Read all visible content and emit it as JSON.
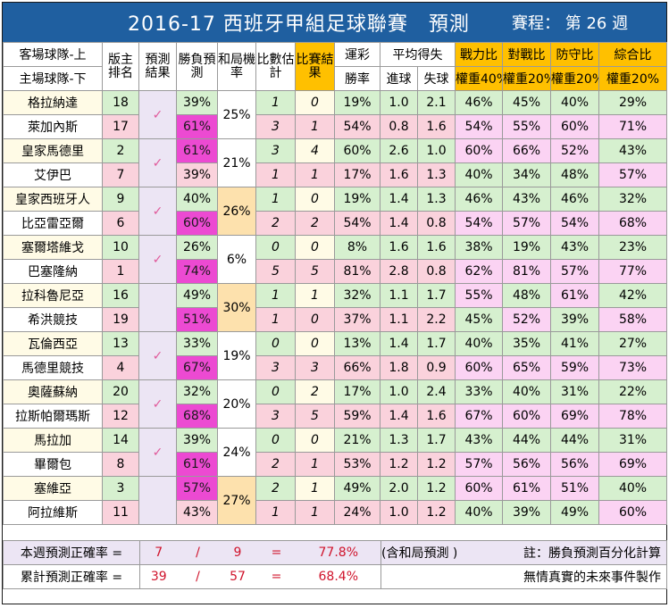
{
  "title": "2016-17 西班牙甲組足球聯賽　預測",
  "schedule": "賽程： 第 26 週",
  "headers": {
    "team_top": "客場球隊-上",
    "team_bottom": "主場球隊-下",
    "rank": "版主排名",
    "prediction": "預測結果",
    "winloss": "勝負預測",
    "draw": "和局機率",
    "score_est": "比數估計",
    "result": "比賽結果",
    "lottery": "運彩",
    "lottery_sub": "勝率",
    "avg": "平均得失",
    "avg_for": "進球",
    "avg_against": "失球",
    "power": "戰力比",
    "power_w": "權重40%",
    "h2h": "對戰比",
    "h2h_w": "權重20%",
    "defense": "防守比",
    "defense_w": "權重20%",
    "overall": "綜合比",
    "overall_w": "權重20%"
  },
  "check_mark": "✓",
  "matches": [
    {
      "draw": "25%",
      "hit": true,
      "teams": [
        {
          "name": "格拉納達",
          "rank": "18",
          "wl": "39%",
          "est": "1",
          "res": "0",
          "lot": "19%",
          "gf": "1.0",
          "ga": "2.1",
          "pw": "46%",
          "h2h": "45%",
          "def": "40%",
          "ovr": "29%"
        },
        {
          "name": "萊加內斯",
          "rank": "17",
          "wl": "61%",
          "est": "3",
          "res": "1",
          "lot": "54%",
          "gf": "0.8",
          "ga": "1.6",
          "pw": "54%",
          "h2h": "55%",
          "def": "60%",
          "ovr": "71%"
        }
      ]
    },
    {
      "draw": "21%",
      "hit": true,
      "teams": [
        {
          "name": "皇家馬德里",
          "rank": "2",
          "wl": "61%",
          "est": "3",
          "res": "4",
          "lot": "60%",
          "gf": "2.6",
          "ga": "1.0",
          "pw": "60%",
          "h2h": "66%",
          "def": "52%",
          "ovr": "43%"
        },
        {
          "name": "艾伊巴",
          "rank": "7",
          "wl": "39%",
          "est": "1",
          "res": "1",
          "lot": "17%",
          "gf": "1.6",
          "ga": "1.3",
          "pw": "40%",
          "h2h": "34%",
          "def": "48%",
          "ovr": "57%"
        }
      ]
    },
    {
      "draw": "26%",
      "hit": true,
      "teams": [
        {
          "name": "皇家西班牙人",
          "rank": "9",
          "wl": "40%",
          "est": "1",
          "res": "0",
          "lot": "19%",
          "gf": "1.4",
          "ga": "1.3",
          "pw": "46%",
          "h2h": "43%",
          "def": "46%",
          "ovr": "32%"
        },
        {
          "name": "比亞雷亞爾",
          "rank": "6",
          "wl": "60%",
          "est": "2",
          "res": "2",
          "lot": "54%",
          "gf": "1.4",
          "ga": "0.8",
          "pw": "54%",
          "h2h": "57%",
          "def": "54%",
          "ovr": "68%"
        }
      ]
    },
    {
      "draw": "6%",
      "hit": true,
      "teams": [
        {
          "name": "塞爾塔維戈",
          "rank": "10",
          "wl": "26%",
          "est": "0",
          "res": "0",
          "lot": "8%",
          "gf": "1.6",
          "ga": "1.6",
          "pw": "38%",
          "h2h": "19%",
          "def": "43%",
          "ovr": "23%"
        },
        {
          "name": "巴塞隆納",
          "rank": "1",
          "wl": "74%",
          "est": "5",
          "res": "5",
          "lot": "81%",
          "gf": "2.8",
          "ga": "0.8",
          "pw": "62%",
          "h2h": "81%",
          "def": "57%",
          "ovr": "77%"
        }
      ]
    },
    {
      "draw": "30%",
      "hit": false,
      "teams": [
        {
          "name": "拉科魯尼亞",
          "rank": "16",
          "wl": "49%",
          "est": "1",
          "res": "1",
          "lot": "32%",
          "gf": "1.1",
          "ga": "1.7",
          "pw": "55%",
          "h2h": "48%",
          "def": "61%",
          "ovr": "42%"
        },
        {
          "name": "希洪競技",
          "rank": "19",
          "wl": "51%",
          "est": "1",
          "res": "0",
          "lot": "37%",
          "gf": "1.1",
          "ga": "2.2",
          "pw": "45%",
          "h2h": "52%",
          "def": "39%",
          "ovr": "58%"
        }
      ]
    },
    {
      "draw": "19%",
      "hit": true,
      "teams": [
        {
          "name": "瓦倫西亞",
          "rank": "13",
          "wl": "33%",
          "est": "0",
          "res": "0",
          "lot": "13%",
          "gf": "1.4",
          "ga": "1.7",
          "pw": "40%",
          "h2h": "35%",
          "def": "41%",
          "ovr": "27%"
        },
        {
          "name": "馬德里競技",
          "rank": "4",
          "wl": "67%",
          "est": "3",
          "res": "3",
          "lot": "66%",
          "gf": "1.8",
          "ga": "0.9",
          "pw": "60%",
          "h2h": "65%",
          "def": "59%",
          "ovr": "73%"
        }
      ]
    },
    {
      "draw": "20%",
      "hit": true,
      "teams": [
        {
          "name": "奧薩蘇納",
          "rank": "20",
          "wl": "32%",
          "est": "0",
          "res": "2",
          "lot": "17%",
          "gf": "1.0",
          "ga": "2.4",
          "pw": "33%",
          "h2h": "40%",
          "def": "31%",
          "ovr": "22%"
        },
        {
          "name": "拉斯帕爾瑪斯",
          "rank": "12",
          "wl": "68%",
          "est": "3",
          "res": "5",
          "lot": "59%",
          "gf": "1.4",
          "ga": "1.6",
          "pw": "67%",
          "h2h": "60%",
          "def": "69%",
          "ovr": "78%"
        }
      ]
    },
    {
      "draw": "24%",
      "hit": true,
      "teams": [
        {
          "name": "馬拉加",
          "rank": "14",
          "wl": "39%",
          "est": "0",
          "res": "0",
          "lot": "21%",
          "gf": "1.3",
          "ga": "1.7",
          "pw": "43%",
          "h2h": "44%",
          "def": "44%",
          "ovr": "31%"
        },
        {
          "name": "畢爾包",
          "rank": "8",
          "wl": "61%",
          "est": "2",
          "res": "1",
          "lot": "53%",
          "gf": "1.2",
          "ga": "1.2",
          "pw": "57%",
          "h2h": "56%",
          "def": "56%",
          "ovr": "69%"
        }
      ]
    },
    {
      "draw": "27%",
      "hit": false,
      "teams": [
        {
          "name": "塞維亞",
          "rank": "3",
          "wl": "57%",
          "est": "2",
          "res": "1",
          "lot": "49%",
          "gf": "2.0",
          "ga": "1.2",
          "pw": "60%",
          "h2h": "61%",
          "def": "51%",
          "ovr": "40%"
        },
        {
          "name": "阿拉維斯",
          "rank": "11",
          "wl": "43%",
          "est": "1",
          "res": "1",
          "lot": "24%",
          "gf": "1.0",
          "ga": "1.2",
          "pw": "40%",
          "h2h": "39%",
          "def": "49%",
          "ovr": "60%"
        }
      ]
    }
  ],
  "footer": {
    "weekly_label": "本週預測正確率 =",
    "weekly_hit": "7",
    "weekly_total": "9",
    "weekly_pct": "77.8%",
    "weekly_note": "(含和局預測 )",
    "remark": "註：勝負預測百分化計算",
    "cum_label": "累計預測正確率 =",
    "cum_hit": "39",
    "cum_total": "57",
    "cum_pct": "68.4%",
    "credit": "無情真實的未來事件製作",
    "slash": "/",
    "equals": "="
  }
}
